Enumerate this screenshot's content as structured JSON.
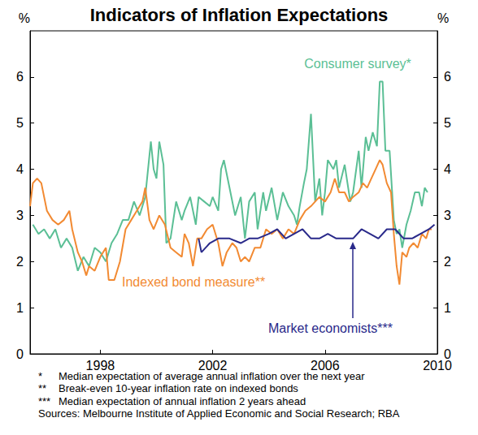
{
  "chart_data": {
    "type": "line",
    "title": "Indicators of Inflation Expectations",
    "y_label": "%",
    "xlim": [
      1995.5,
      2010
    ],
    "xticks": [
      1998,
      2002,
      2006,
      2010
    ],
    "ylim": [
      0,
      7
    ],
    "yticks": [
      0,
      1,
      2,
      3,
      4,
      5,
      6
    ],
    "grid": false,
    "series": [
      {
        "name": "Consumer survey*",
        "color": "#5bbf95",
        "x": [
          1995.6,
          1995.8,
          1996.0,
          1996.2,
          1996.4,
          1996.6,
          1996.8,
          1997.0,
          1997.2,
          1997.4,
          1997.6,
          1997.8,
          1998.0,
          1998.2,
          1998.4,
          1998.6,
          1998.8,
          1999.0,
          1999.2,
          1999.4,
          1999.6,
          1999.8,
          1999.9,
          2000.0,
          2000.1,
          2000.25,
          2000.35,
          2000.5,
          2000.7,
          2000.9,
          2001.0,
          2001.2,
          2001.4,
          2001.5,
          2001.7,
          2001.9,
          2002.0,
          2002.2,
          2002.3,
          2002.4,
          2002.6,
          2002.8,
          2003.0,
          2003.15,
          2003.3,
          2003.5,
          2003.6,
          2003.8,
          2003.9,
          2004.1,
          2004.3,
          2004.5,
          2004.7,
          2004.9,
          2005.0,
          2005.1,
          2005.25,
          2005.35,
          2005.5,
          2005.65,
          2005.8,
          2005.9,
          2006.0,
          2006.1,
          2006.3,
          2006.4,
          2006.5,
          2006.7,
          2006.9,
          2007.0,
          2007.2,
          2007.3,
          2007.45,
          2007.55,
          2007.7,
          2007.85,
          2007.95,
          2008.05,
          2008.15,
          2008.3,
          2008.45,
          2008.55,
          2008.65,
          2008.75,
          2008.9,
          2009.05,
          2009.2,
          2009.35,
          2009.45,
          2009.55,
          2009.65
        ],
        "values": [
          2.8,
          2.6,
          2.7,
          2.5,
          2.7,
          2.3,
          2.5,
          2.3,
          1.8,
          2.1,
          1.9,
          2.3,
          2.2,
          2.0,
          2.4,
          2.6,
          2.9,
          2.9,
          3.3,
          3.0,
          3.4,
          4.6,
          4.0,
          3.8,
          4.6,
          4.1,
          2.4,
          2.5,
          3.3,
          2.9,
          3.1,
          3.4,
          2.8,
          3.4,
          3.3,
          3.2,
          3.4,
          3.1,
          4.0,
          4.2,
          3.6,
          3.0,
          3.4,
          2.5,
          3.3,
          3.5,
          2.7,
          3.5,
          3.1,
          3.6,
          2.9,
          3.5,
          3.2,
          3.0,
          2.8,
          3.2,
          3.7,
          4.0,
          5.2,
          3.3,
          3.8,
          3.0,
          3.5,
          4.2,
          4.0,
          4.2,
          3.6,
          4.1,
          3.3,
          3.5,
          4.4,
          3.6,
          4.7,
          4.4,
          4.8,
          4.5,
          5.9,
          5.9,
          4.4,
          4.4,
          2.9,
          2.6,
          2.7,
          2.3,
          2.8,
          3.1,
          3.5,
          3.5,
          3.2,
          3.6,
          3.5
        ]
      },
      {
        "name": "Indexed bond measure**",
        "color": "#f28a32",
        "x": [
          1995.5,
          1995.6,
          1995.75,
          1995.9,
          1996.1,
          1996.3,
          1996.5,
          1996.7,
          1996.9,
          1997.0,
          1997.2,
          1997.35,
          1997.5,
          1997.6,
          1997.8,
          1998.0,
          1998.2,
          1998.3,
          1998.5,
          1998.7,
          1998.9,
          1999.1,
          1999.3,
          1999.5,
          1999.6,
          1999.75,
          1999.9,
          2000.1,
          2000.3,
          2000.5,
          2000.7,
          2000.9,
          2001.0,
          2001.15,
          2001.3,
          2001.45,
          2001.6,
          2001.8,
          2002.0,
          2002.2,
          2002.35,
          2002.5,
          2002.7,
          2002.85,
          2003.0,
          2003.15,
          2003.3,
          2003.5,
          2003.7,
          2003.9,
          2004.1,
          2004.3,
          2004.5,
          2004.7,
          2004.9,
          2005.1,
          2005.3,
          2005.5,
          2005.65,
          2005.8,
          2006.0,
          2006.2,
          2006.35,
          2006.5,
          2006.7,
          2006.85,
          2007.0,
          2007.2,
          2007.35,
          2007.5,
          2007.65,
          2007.8,
          2007.95,
          2008.05,
          2008.2,
          2008.35,
          2008.45,
          2008.55,
          2008.65,
          2008.75,
          2008.9,
          2009.0,
          2009.15,
          2009.3,
          2009.45,
          2009.6,
          2009.7,
          2009.8
        ],
        "values": [
          3.2,
          3.7,
          3.8,
          3.7,
          3.1,
          2.9,
          2.8,
          2.9,
          3.1,
          2.7,
          2.2,
          2.0,
          1.7,
          1.9,
          1.8,
          2.1,
          2.3,
          1.6,
          1.6,
          2.0,
          2.7,
          2.9,
          3.1,
          3.3,
          3.6,
          2.9,
          2.7,
          3.0,
          2.8,
          2.3,
          2.2,
          2.1,
          2.6,
          2.4,
          1.9,
          2.5,
          2.5,
          2.7,
          2.8,
          2.4,
          1.9,
          2.2,
          2.4,
          2.3,
          2.0,
          2.1,
          2.0,
          2.3,
          2.3,
          2.7,
          2.6,
          2.7,
          2.5,
          2.7,
          2.6,
          2.9,
          3.1,
          3.2,
          3.3,
          3.4,
          3.3,
          3.5,
          3.8,
          3.5,
          3.5,
          3.3,
          3.4,
          3.5,
          3.7,
          3.6,
          3.8,
          4.0,
          4.2,
          4.1,
          3.7,
          3.5,
          2.6,
          1.9,
          1.5,
          2.2,
          2.1,
          2.3,
          2.4,
          2.3,
          2.6,
          2.5,
          2.7,
          2.7
        ]
      },
      {
        "name": "Market economists***",
        "color": "#29298a",
        "x": [
          2001.5,
          2001.6,
          2001.9,
          2002.2,
          2002.6,
          2003.0,
          2003.3,
          2003.6,
          2004.0,
          2004.3,
          2004.6,
          2004.9,
          2005.2,
          2005.5,
          2005.8,
          2006.1,
          2006.4,
          2006.7,
          2007.0,
          2007.3,
          2007.6,
          2007.9,
          2008.2,
          2008.5,
          2008.8,
          2009.1,
          2009.4,
          2009.7,
          2009.9
        ],
        "values": [
          2.5,
          2.2,
          2.4,
          2.5,
          2.5,
          2.4,
          2.5,
          2.5,
          2.6,
          2.7,
          2.5,
          2.6,
          2.7,
          2.5,
          2.5,
          2.6,
          2.5,
          2.5,
          2.5,
          2.7,
          2.6,
          2.5,
          2.7,
          2.7,
          2.5,
          2.5,
          2.6,
          2.7,
          2.8
        ]
      }
    ],
    "notes": [
      {
        "mark": "*",
        "text": "Median expectation of average annual inflation over the next year"
      },
      {
        "mark": "**",
        "text": "Break-even 10-year inflation rate on indexed bonds"
      },
      {
        "mark": "***",
        "text": "Median expectation of annual inflation 2 years ahead"
      }
    ],
    "source": "Sources: Melbourne Institute of Applied Economic and Social Research; RBA"
  }
}
